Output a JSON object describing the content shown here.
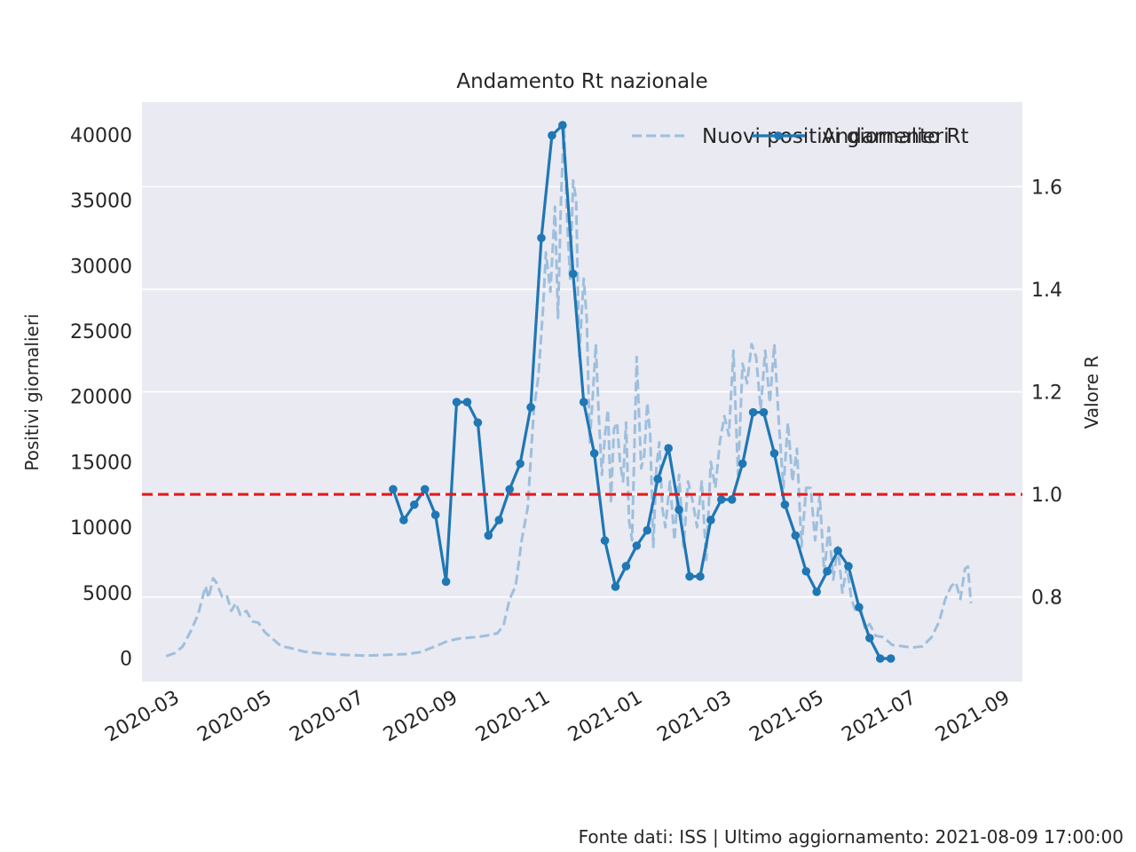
{
  "chart_data": {
    "type": "line",
    "title": "Andamento Rt nazionale",
    "ylabel": "Positivi giornalieri",
    "y2label": "Valore R",
    "footer": "Fonte dati: ISS | Ultimo aggiornamento: 2021-08-09 17:00:00",
    "x_ticks": [
      "2020-03",
      "2020-05",
      "2020-07",
      "2020-09",
      "2020-11",
      "2021-01",
      "2021-03",
      "2021-05",
      "2021-07",
      "2021-09"
    ],
    "xlim": [
      "2020-02-08",
      "2021-09-12"
    ],
    "ylim": [
      -1800,
      42500
    ],
    "y_ticks": [
      0,
      5000,
      10000,
      15000,
      20000,
      25000,
      30000,
      35000,
      40000
    ],
    "y2lim": [
      0.635,
      1.765
    ],
    "y2_ticks": [
      "0.8",
      "1.0",
      "1.2",
      "1.4",
      "1.6"
    ],
    "grid": true,
    "legend_position": "top-right",
    "legend_overlap": true,
    "reference_line": {
      "axis": "y2",
      "value": 1.0,
      "color": "#e31a1c",
      "style": "dashed"
    },
    "series": [
      {
        "name": "Nuovi positivi giornalieri",
        "axis": "y",
        "style": "dashed",
        "color": "#9ebfdd",
        "points": [
          [
            "2020-02-24",
            150
          ],
          [
            "2020-03-01",
            400
          ],
          [
            "2020-03-06",
            900
          ],
          [
            "2020-03-11",
            2000
          ],
          [
            "2020-03-16",
            3300
          ],
          [
            "2020-03-21",
            5500
          ],
          [
            "2020-03-23",
            4600
          ],
          [
            "2020-03-26",
            6100
          ],
          [
            "2020-03-28",
            5800
          ],
          [
            "2020-04-01",
            4700
          ],
          [
            "2020-04-04",
            4800
          ],
          [
            "2020-04-07",
            3600
          ],
          [
            "2020-04-10",
            4200
          ],
          [
            "2020-04-13",
            3300
          ],
          [
            "2020-04-17",
            3600
          ],
          [
            "2020-04-21",
            2800
          ],
          [
            "2020-04-25",
            2700
          ],
          [
            "2020-04-29",
            2000
          ],
          [
            "2020-05-05",
            1400
          ],
          [
            "2020-05-10",
            900
          ],
          [
            "2020-05-15",
            800
          ],
          [
            "2020-05-25",
            500
          ],
          [
            "2020-06-05",
            350
          ],
          [
            "2020-06-20",
            250
          ],
          [
            "2020-07-05",
            180
          ],
          [
            "2020-07-20",
            250
          ],
          [
            "2020-08-01",
            300
          ],
          [
            "2020-08-10",
            450
          ],
          [
            "2020-08-20",
            900
          ],
          [
            "2020-08-28",
            1300
          ],
          [
            "2020-09-05",
            1500
          ],
          [
            "2020-09-15",
            1600
          ],
          [
            "2020-09-22",
            1700
          ],
          [
            "2020-09-30",
            1900
          ],
          [
            "2020-10-04",
            2500
          ],
          [
            "2020-10-08",
            4500
          ],
          [
            "2020-10-12",
            5500
          ],
          [
            "2020-10-16",
            9000
          ],
          [
            "2020-10-20",
            11500
          ],
          [
            "2020-10-24",
            19000
          ],
          [
            "2020-10-27",
            21500
          ],
          [
            "2020-10-30",
            26500
          ],
          [
            "2020-11-01",
            31000
          ],
          [
            "2020-11-04",
            28000
          ],
          [
            "2020-11-07",
            34500
          ],
          [
            "2020-11-09",
            26000
          ],
          [
            "2020-11-11",
            35000
          ],
          [
            "2020-11-13",
            40800
          ],
          [
            "2020-11-15",
            33500
          ],
          [
            "2020-11-17",
            29000
          ],
          [
            "2020-11-19",
            36500
          ],
          [
            "2020-11-21",
            35000
          ],
          [
            "2020-11-23",
            23000
          ],
          [
            "2020-11-26",
            29000
          ],
          [
            "2020-11-28",
            26000
          ],
          [
            "2020-11-30",
            16500
          ],
          [
            "2020-12-02",
            20000
          ],
          [
            "2020-12-04",
            24000
          ],
          [
            "2020-12-06",
            18500
          ],
          [
            "2020-12-08",
            14000
          ],
          [
            "2020-12-10",
            16999
          ],
          [
            "2020-12-12",
            19000
          ],
          [
            "2020-12-14",
            12000
          ],
          [
            "2020-12-16",
            17500
          ],
          [
            "2020-12-18",
            18000
          ],
          [
            "2020-12-20",
            15000
          ],
          [
            "2020-12-22",
            13500
          ],
          [
            "2020-12-24",
            18000
          ],
          [
            "2020-12-26",
            10500
          ],
          [
            "2020-12-28",
            9000
          ],
          [
            "2020-12-31",
            23000
          ],
          [
            "2021-01-03",
            14500
          ],
          [
            "2021-01-05",
            15500
          ],
          [
            "2021-01-07",
            19500
          ],
          [
            "2021-01-09",
            17000
          ],
          [
            "2021-01-11",
            8500
          ],
          [
            "2021-01-13",
            14500
          ],
          [
            "2021-01-15",
            16500
          ],
          [
            "2021-01-17",
            11500
          ],
          [
            "2021-01-19",
            10000
          ],
          [
            "2021-01-22",
            13500
          ],
          [
            "2021-01-25",
            9000
          ],
          [
            "2021-01-28",
            14000
          ],
          [
            "2021-01-31",
            8500
          ],
          [
            "2021-02-03",
            13500
          ],
          [
            "2021-02-06",
            12000
          ],
          [
            "2021-02-09",
            10000
          ],
          [
            "2021-02-12",
            13500
          ],
          [
            "2021-02-15",
            7500
          ],
          [
            "2021-02-18",
            15000
          ],
          [
            "2021-02-21",
            13000
          ],
          [
            "2021-02-24",
            16500
          ],
          [
            "2021-02-27",
            18500
          ],
          [
            "2021-03-02",
            17000
          ],
          [
            "2021-03-05",
            23500
          ],
          [
            "2021-03-08",
            14000
          ],
          [
            "2021-03-11",
            22500
          ],
          [
            "2021-03-14",
            21000
          ],
          [
            "2021-03-17",
            24000
          ],
          [
            "2021-03-20",
            23000
          ],
          [
            "2021-03-23",
            19000
          ],
          [
            "2021-03-26",
            23500
          ],
          [
            "2021-03-29",
            19500
          ],
          [
            "2021-04-01",
            24000
          ],
          [
            "2021-04-04",
            18000
          ],
          [
            "2021-04-07",
            13000
          ],
          [
            "2021-04-10",
            18000
          ],
          [
            "2021-04-13",
            13500
          ],
          [
            "2021-04-16",
            16000
          ],
          [
            "2021-04-19",
            8500
          ],
          [
            "2021-04-22",
            13000
          ],
          [
            "2021-04-25",
            13000
          ],
          [
            "2021-04-28",
            9000
          ],
          [
            "2021-05-01",
            12500
          ],
          [
            "2021-05-04",
            6500
          ],
          [
            "2021-05-07",
            10000
          ],
          [
            "2021-05-10",
            6000
          ],
          [
            "2021-05-13",
            8500
          ],
          [
            "2021-05-16",
            5000
          ],
          [
            "2021-05-19",
            7000
          ],
          [
            "2021-05-22",
            4500
          ],
          [
            "2021-05-25",
            3500
          ],
          [
            "2021-05-28",
            3800
          ],
          [
            "2021-05-31",
            2200
          ],
          [
            "2021-06-03",
            2600
          ],
          [
            "2021-06-07",
            1700
          ],
          [
            "2021-06-12",
            1600
          ],
          [
            "2021-06-18",
            1000
          ],
          [
            "2021-06-25",
            900
          ],
          [
            "2021-07-01",
            800
          ],
          [
            "2021-07-08",
            900
          ],
          [
            "2021-07-14",
            1600
          ],
          [
            "2021-07-19",
            2800
          ],
          [
            "2021-07-23",
            4500
          ],
          [
            "2021-07-27",
            5500
          ],
          [
            "2021-07-30",
            5800
          ],
          [
            "2021-08-02",
            4500
          ],
          [
            "2021-08-05",
            6800
          ],
          [
            "2021-08-07",
            7000
          ],
          [
            "2021-08-09",
            4200
          ]
        ]
      },
      {
        "name": "Andamento Rt",
        "axis": "y2",
        "style": "solid",
        "marker": "circle",
        "color": "#1f77b4",
        "points": [
          [
            "2020-07-23",
            1.01
          ],
          [
            "2020-07-30",
            0.95
          ],
          [
            "2020-08-06",
            0.98
          ],
          [
            "2020-08-13",
            1.01
          ],
          [
            "2020-08-20",
            0.96
          ],
          [
            "2020-08-27",
            0.83
          ],
          [
            "2020-09-03",
            1.18
          ],
          [
            "2020-09-10",
            1.18
          ],
          [
            "2020-09-17",
            1.14
          ],
          [
            "2020-09-24",
            0.92
          ],
          [
            "2020-10-01",
            0.95
          ],
          [
            "2020-10-08",
            1.01
          ],
          [
            "2020-10-15",
            1.06
          ],
          [
            "2020-10-22",
            1.17
          ],
          [
            "2020-10-29",
            1.5
          ],
          [
            "2020-11-05",
            1.7
          ],
          [
            "2020-11-12",
            1.72
          ],
          [
            "2020-11-19",
            1.43
          ],
          [
            "2020-11-26",
            1.18
          ],
          [
            "2020-12-03",
            1.08
          ],
          [
            "2020-12-10",
            0.91
          ],
          [
            "2020-12-17",
            0.82
          ],
          [
            "2020-12-24",
            0.86
          ],
          [
            "2020-12-31",
            0.9
          ],
          [
            "2021-01-07",
            0.93
          ],
          [
            "2021-01-14",
            1.03
          ],
          [
            "2021-01-21",
            1.09
          ],
          [
            "2021-01-28",
            0.97
          ],
          [
            "2021-02-04",
            0.84
          ],
          [
            "2021-02-11",
            0.84
          ],
          [
            "2021-02-18",
            0.95
          ],
          [
            "2021-02-25",
            0.99
          ],
          [
            "2021-03-04",
            0.99
          ],
          [
            "2021-03-11",
            1.06
          ],
          [
            "2021-03-18",
            1.16
          ],
          [
            "2021-03-25",
            1.16
          ],
          [
            "2021-04-01",
            1.08
          ],
          [
            "2021-04-08",
            0.98
          ],
          [
            "2021-04-15",
            0.92
          ],
          [
            "2021-04-22",
            0.85
          ],
          [
            "2021-04-29",
            0.81
          ],
          [
            "2021-05-06",
            0.85
          ],
          [
            "2021-05-13",
            0.89
          ],
          [
            "2021-05-20",
            0.86
          ],
          [
            "2021-05-27",
            0.78
          ],
          [
            "2021-06-03",
            0.72
          ],
          [
            "2021-06-10",
            0.68
          ],
          [
            "2021-06-17",
            0.68
          ]
        ]
      }
    ]
  }
}
